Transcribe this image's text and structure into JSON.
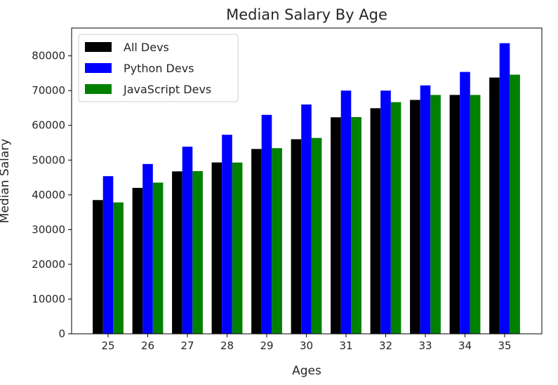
{
  "chart_data": {
    "type": "bar",
    "title": "Median Salary By Age",
    "xlabel": "Ages",
    "ylabel": "Median Salary",
    "categories": [
      "25",
      "26",
      "27",
      "28",
      "29",
      "30",
      "31",
      "32",
      "33",
      "34",
      "35"
    ],
    "series": [
      {
        "name": "All Devs",
        "color": "#000000",
        "values": [
          38496,
          42000,
          46752,
          49320,
          53200,
          56000,
          62316,
          64928,
          67317,
          68748,
          73752
        ]
      },
      {
        "name": "Python Devs",
        "color": "#0000ff",
        "values": [
          45372,
          48876,
          53850,
          57287,
          63016,
          65998,
          70003,
          70000,
          71496,
          75370,
          83640
        ]
      },
      {
        "name": "JavaScript Devs",
        "color": "#008000",
        "values": [
          37810,
          43515,
          46823,
          49293,
          53437,
          56373,
          62375,
          66674,
          68745,
          68746,
          74583
        ]
      }
    ],
    "ylim": [
      0,
      88000
    ],
    "yticks": [
      "0",
      "10000",
      "20000",
      "30000",
      "40000",
      "50000",
      "60000",
      "70000",
      "80000"
    ],
    "legend_position": "upper-left",
    "grid": false
  }
}
